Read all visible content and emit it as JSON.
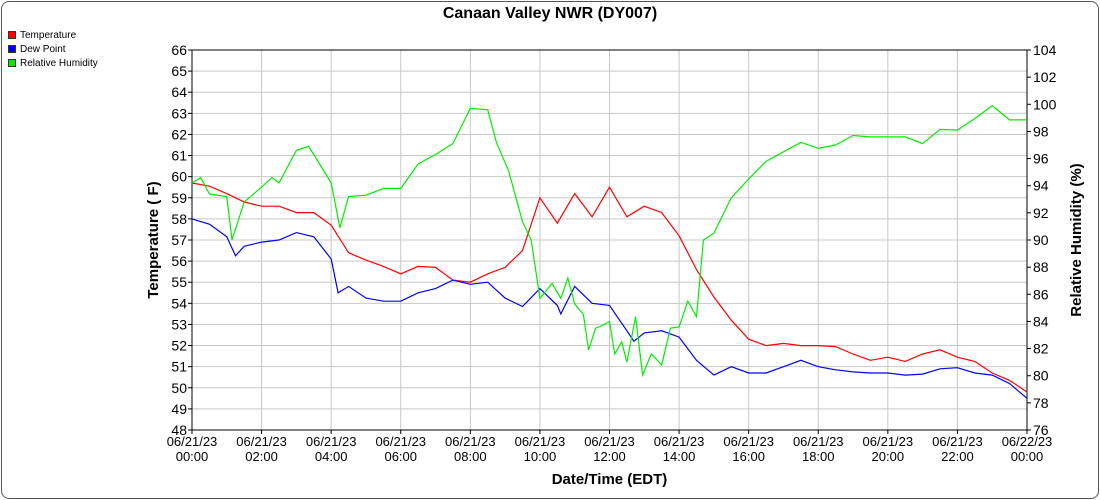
{
  "chart_data": {
    "type": "line",
    "title": "Canaan Valley NWR (DY007)",
    "xlabel": "Date/Time (EDT)",
    "ylabel": "Temperature ( F)",
    "y2label": "Relative Humidity (%)",
    "ylim": [
      48,
      66
    ],
    "y2lim": [
      76,
      104
    ],
    "xlim_hours": [
      0,
      24
    ],
    "grid": true,
    "legend_placement": "top-left",
    "y_ticks": [
      "48",
      "49",
      "50",
      "51",
      "52",
      "53",
      "54",
      "55",
      "56",
      "57",
      "58",
      "59",
      "60",
      "61",
      "62",
      "63",
      "64",
      "65",
      "66"
    ],
    "y2_ticks": [
      "76",
      "78",
      "80",
      "82",
      "84",
      "86",
      "88",
      "90",
      "92",
      "94",
      "96",
      "98",
      "100",
      "102",
      "104"
    ],
    "x_ticks": [
      {
        "date": "06/21/23",
        "time": "00:00"
      },
      {
        "date": "06/21/23",
        "time": "02:00"
      },
      {
        "date": "06/21/23",
        "time": "04:00"
      },
      {
        "date": "06/21/23",
        "time": "06:00"
      },
      {
        "date": "06/21/23",
        "time": "08:00"
      },
      {
        "date": "06/21/23",
        "time": "10:00"
      },
      {
        "date": "06/21/23",
        "time": "12:00"
      },
      {
        "date": "06/21/23",
        "time": "14:00"
      },
      {
        "date": "06/21/23",
        "time": "16:00"
      },
      {
        "date": "06/21/23",
        "time": "18:00"
      },
      {
        "date": "06/21/23",
        "time": "20:00"
      },
      {
        "date": "06/21/23",
        "time": "22:00"
      },
      {
        "date": "06/22/23",
        "time": "00:00"
      }
    ],
    "series": [
      {
        "name": "Temperature",
        "color": "#ff0000",
        "axis": "left",
        "x": [
          0,
          0.5,
          1,
          1.5,
          2,
          2.5,
          3,
          3.5,
          4,
          4.5,
          5,
          5.5,
          6,
          6.5,
          7,
          7.5,
          8,
          8.5,
          9,
          9.5,
          10,
          10.5,
          11,
          11.5,
          12,
          12.5,
          13,
          13.5,
          14,
          14.5,
          15,
          15.5,
          16,
          16.5,
          17,
          17.5,
          18,
          18.5,
          19,
          19.5,
          20,
          20.5,
          21,
          21.5,
          22,
          22.5,
          23,
          23.5,
          24
        ],
        "values": [
          59.7,
          59.55,
          59.2,
          58.8,
          58.6,
          58.6,
          58.3,
          58.3,
          57.7,
          56.4,
          56.05,
          55.75,
          55.4,
          55.75,
          55.7,
          55.1,
          55.0,
          55.4,
          55.7,
          56.5,
          59.0,
          57.8,
          59.2,
          58.1,
          59.5,
          58.1,
          58.6,
          58.3,
          57.2,
          55.6,
          54.3,
          53.2,
          52.3,
          52.0,
          52.1,
          52.0,
          52.0,
          51.95,
          51.6,
          51.3,
          51.45,
          51.25,
          51.6,
          51.8,
          51.45,
          51.25,
          50.7,
          50.35,
          49.8
        ]
      },
      {
        "name": "Dew Point",
        "color": "#0000ff",
        "axis": "left",
        "x": [
          0,
          0.5,
          1,
          1.25,
          1.5,
          2,
          2.5,
          3,
          3.5,
          4,
          4.2,
          4.5,
          5,
          5.5,
          6,
          6.5,
          7,
          7.5,
          8,
          8.5,
          9,
          9.5,
          10,
          10.5,
          10.6,
          11,
          11.5,
          12,
          12.5,
          12.7,
          13,
          13.5,
          14,
          14.5,
          15,
          15.5,
          16,
          16.5,
          17,
          17.5,
          18,
          18.5,
          19,
          19.5,
          20,
          20.5,
          21,
          21.5,
          22,
          22.5,
          23,
          23.5,
          24
        ],
        "values": [
          58.0,
          57.75,
          57.15,
          56.25,
          56.7,
          56.9,
          57.0,
          57.35,
          57.15,
          56.1,
          54.5,
          54.8,
          54.25,
          54.1,
          54.1,
          54.5,
          54.7,
          55.1,
          54.9,
          55.0,
          54.25,
          53.85,
          54.7,
          53.9,
          53.5,
          54.8,
          54.0,
          53.9,
          52.7,
          52.2,
          52.6,
          52.7,
          52.4,
          51.3,
          50.6,
          51.0,
          50.7,
          50.7,
          51.0,
          51.3,
          51.0,
          50.85,
          50.75,
          50.7,
          50.7,
          50.6,
          50.65,
          50.9,
          50.95,
          50.7,
          50.6,
          50.2,
          49.5
        ]
      },
      {
        "name": "Relative Humidity",
        "color": "#00ee00",
        "axis": "right",
        "x": [
          0,
          0.25,
          0.5,
          1,
          1.15,
          1.5,
          2,
          2.3,
          2.5,
          3,
          3.35,
          3.5,
          4,
          4.25,
          4.5,
          5,
          5.5,
          6,
          6.5,
          7,
          7.5,
          8,
          8.5,
          8.75,
          9.1,
          9.5,
          9.75,
          10,
          10.35,
          10.6,
          10.8,
          11,
          11.25,
          11.4,
          11.6,
          11.8,
          12,
          12.15,
          12.35,
          12.5,
          12.75,
          12.95,
          13.2,
          13.5,
          13.75,
          14,
          14.25,
          14.5,
          14.7,
          15,
          15.5,
          16,
          16.5,
          17,
          17.5,
          18,
          18.5,
          19,
          19.5,
          20,
          20.5,
          21,
          21.5,
          22,
          22.5,
          23,
          23.5,
          24
        ],
        "values": [
          94.2,
          94.6,
          93.4,
          93.2,
          90.0,
          92.8,
          93.9,
          94.6,
          94.2,
          96.6,
          96.9,
          96.3,
          94.2,
          90.9,
          93.2,
          93.3,
          93.8,
          93.8,
          95.6,
          96.3,
          97.1,
          99.7,
          99.6,
          97.2,
          95.1,
          91.35,
          90.0,
          85.7,
          86.8,
          85.7,
          87.2,
          85.3,
          84.5,
          81.9,
          83.5,
          83.7,
          84.0,
          81.6,
          82.5,
          81.0,
          84.35,
          80.05,
          81.6,
          80.8,
          83.5,
          83.6,
          85.5,
          84.35,
          90.0,
          90.5,
          93.1,
          94.5,
          95.8,
          96.5,
          97.2,
          96.75,
          97.0,
          97.7,
          97.6,
          97.6,
          97.6,
          97.1,
          98.15,
          98.1,
          98.95,
          99.9,
          98.85,
          98.85
        ]
      }
    ]
  }
}
